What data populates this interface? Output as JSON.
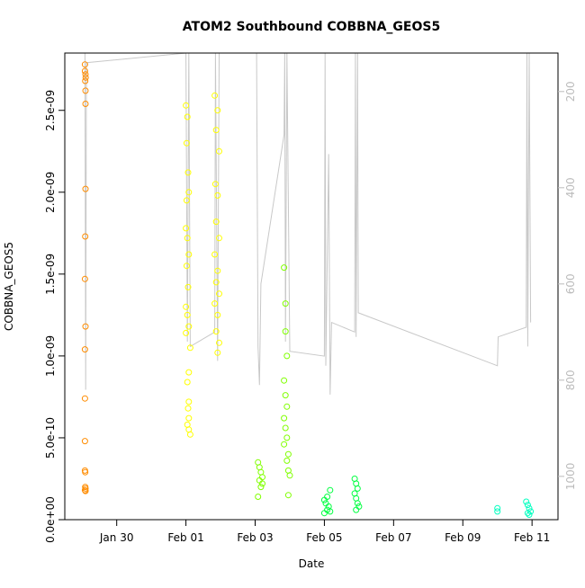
{
  "chart_data": {
    "type": "scatter",
    "title": "ATOM2 Southbound COBBNA_GEOS5",
    "xlabel": "Date",
    "ylabel": "COBBNA_GEOS5",
    "xlim": [
      "2017-01-28T12:00",
      "2017-02-11T18:00"
    ],
    "ylim": [
      0,
      2.85e-09
    ],
    "right_axis": {
      "label": "",
      "ylim": [
        1090,
        120
      ],
      "ticks": [
        200,
        400,
        600,
        800,
        1000
      ],
      "color": "#bbbbbb"
    },
    "x_ticks": [
      {
        "date": "2017-01-30",
        "label": "Jan 30"
      },
      {
        "date": "2017-02-01",
        "label": "Feb 01"
      },
      {
        "date": "2017-02-03",
        "label": "Feb 03"
      },
      {
        "date": "2017-02-05",
        "label": "Feb 05"
      },
      {
        "date": "2017-02-07",
        "label": "Feb 07"
      },
      {
        "date": "2017-02-09",
        "label": "Feb 09"
      },
      {
        "date": "2017-02-11",
        "label": "Feb 11"
      }
    ],
    "y_ticks": [
      {
        "value": 0,
        "label": "0.0e+00"
      },
      {
        "value": 5e-10,
        "label": "5.0e-10"
      },
      {
        "value": 1e-09,
        "label": "1.0e-09"
      },
      {
        "value": 1.5e-09,
        "label": "1.5e-09"
      },
      {
        "value": 2e-09,
        "label": "2.0e-09"
      },
      {
        "value": 2.5e-09,
        "label": "2.5e-09"
      }
    ],
    "grid": false,
    "legend": "none",
    "marker": "open-circle",
    "altitude_line_color": "#c8c8c8",
    "series": [
      {
        "color": "#ff8c00",
        "points": [
          [
            "2017-01-29T02:00",
            2.78e-09
          ],
          [
            "2017-01-29T02:00",
            2.74e-09
          ],
          [
            "2017-01-29T02:20",
            2.72e-09
          ],
          [
            "2017-01-29T02:30",
            2.7e-09
          ],
          [
            "2017-01-29T02:10",
            2.68e-09
          ],
          [
            "2017-01-29T02:20",
            2.62e-09
          ],
          [
            "2017-01-29T02:20",
            2.54e-09
          ],
          [
            "2017-01-29T02:20",
            2.02e-09
          ],
          [
            "2017-01-29T02:10",
            1.73e-09
          ],
          [
            "2017-01-29T02:00",
            1.47e-09
          ],
          [
            "2017-01-29T02:20",
            1.18e-09
          ],
          [
            "2017-01-29T02:00",
            1.04e-09
          ],
          [
            "2017-01-29T02:00",
            7.4e-10
          ],
          [
            "2017-01-29T02:00",
            4.8e-10
          ],
          [
            "2017-01-29T02:00",
            3e-10
          ],
          [
            "2017-01-29T02:10",
            2.9e-10
          ],
          [
            "2017-01-29T02:10",
            2e-10
          ],
          [
            "2017-01-29T02:20",
            1.9e-10
          ],
          [
            "2017-01-29T02:00",
            1.8e-10
          ],
          [
            "2017-01-29T02:20",
            1.75e-10
          ]
        ]
      },
      {
        "color": "#ffff00",
        "points": [
          [
            "2017-02-01T00:00",
            2.53e-09
          ],
          [
            "2017-02-01T01:00",
            2.46e-09
          ],
          [
            "2017-02-01T00:30",
            2.3e-09
          ],
          [
            "2017-02-01T01:30",
            2.12e-09
          ],
          [
            "2017-02-01T02:00",
            2e-09
          ],
          [
            "2017-02-01T00:30",
            1.95e-09
          ],
          [
            "2017-02-01T00:00",
            1.78e-09
          ],
          [
            "2017-02-01T01:00",
            1.72e-09
          ],
          [
            "2017-02-01T02:00",
            1.62e-09
          ],
          [
            "2017-02-01T00:30",
            1.55e-09
          ],
          [
            "2017-02-01T01:30",
            1.42e-09
          ],
          [
            "2017-02-01T00:00",
            1.3e-09
          ],
          [
            "2017-02-01T01:00",
            1.25e-09
          ],
          [
            "2017-02-01T02:00",
            1.18e-09
          ],
          [
            "2017-02-01T00:00",
            1.14e-09
          ],
          [
            "2017-02-01T03:00",
            1.05e-09
          ],
          [
            "2017-02-01T02:00",
            9e-10
          ],
          [
            "2017-02-01T01:00",
            8.4e-10
          ],
          [
            "2017-02-01T02:00",
            7.2e-10
          ],
          [
            "2017-02-01T01:30",
            6.8e-10
          ],
          [
            "2017-02-01T02:00",
            6.2e-10
          ],
          [
            "2017-02-01T01:00",
            5.8e-10
          ],
          [
            "2017-02-01T02:00",
            5.5e-10
          ],
          [
            "2017-02-01T03:00",
            5.2e-10
          ],
          [
            "2017-02-01T20:00",
            2.59e-09
          ],
          [
            "2017-02-01T22:00",
            2.5e-09
          ],
          [
            "2017-02-01T21:00",
            2.38e-09
          ],
          [
            "2017-02-01T23:00",
            2.25e-09
          ],
          [
            "2017-02-01T20:30",
            2.05e-09
          ],
          [
            "2017-02-01T22:00",
            1.98e-09
          ],
          [
            "2017-02-01T21:00",
            1.82e-09
          ],
          [
            "2017-02-01T23:00",
            1.72e-09
          ],
          [
            "2017-02-01T20:00",
            1.62e-09
          ],
          [
            "2017-02-01T22:00",
            1.52e-09
          ],
          [
            "2017-02-01T21:00",
            1.45e-09
          ],
          [
            "2017-02-01T23:00",
            1.38e-09
          ],
          [
            "2017-02-01T20:00",
            1.32e-09
          ],
          [
            "2017-02-01T22:00",
            1.25e-09
          ],
          [
            "2017-02-01T21:00",
            1.15e-09
          ],
          [
            "2017-02-01T23:00",
            1.08e-09
          ],
          [
            "2017-02-01T22:00",
            1.02e-09
          ]
        ]
      },
      {
        "color": "#80ff00",
        "points": [
          [
            "2017-02-03T02:00",
            3.5e-10
          ],
          [
            "2017-02-03T03:00",
            3.2e-10
          ],
          [
            "2017-02-03T04:00",
            2.9e-10
          ],
          [
            "2017-02-03T05:00",
            2.6e-10
          ],
          [
            "2017-02-03T03:00",
            2.4e-10
          ],
          [
            "2017-02-03T05:00",
            2.2e-10
          ],
          [
            "2017-02-03T04:00",
            2e-10
          ],
          [
            "2017-02-03T02:00",
            1.4e-10
          ],
          [
            "2017-02-03T20:00",
            1.54e-09
          ],
          [
            "2017-02-03T21:00",
            1.32e-09
          ],
          [
            "2017-02-03T21:00",
            1.15e-09
          ],
          [
            "2017-02-03T22:00",
            1e-09
          ],
          [
            "2017-02-03T20:00",
            8.5e-10
          ],
          [
            "2017-02-03T21:00",
            7.6e-10
          ],
          [
            "2017-02-03T22:00",
            6.9e-10
          ],
          [
            "2017-02-03T20:00",
            6.2e-10
          ],
          [
            "2017-02-03T21:00",
            5.6e-10
          ],
          [
            "2017-02-03T22:00",
            5e-10
          ],
          [
            "2017-02-03T20:00",
            4.6e-10
          ],
          [
            "2017-02-03T23:00",
            4e-10
          ],
          [
            "2017-02-03T22:00",
            3.6e-10
          ],
          [
            "2017-02-03T23:00",
            3e-10
          ],
          [
            "2017-02-04T00:00",
            2.7e-10
          ],
          [
            "2017-02-03T23:00",
            1.5e-10
          ]
        ]
      },
      {
        "color": "#00ff40",
        "points": [
          [
            "2017-02-05T00:00",
            1.2e-10
          ],
          [
            "2017-02-05T02:00",
            1.4e-10
          ],
          [
            "2017-02-05T04:00",
            1.8e-10
          ],
          [
            "2017-02-05T01:00",
            1e-10
          ],
          [
            "2017-02-05T03:00",
            8e-11
          ],
          [
            "2017-02-05T02:00",
            6e-11
          ],
          [
            "2017-02-05T04:00",
            5e-11
          ],
          [
            "2017-02-05T00:00",
            4e-11
          ],
          [
            "2017-02-05T21:00",
            2.5e-10
          ],
          [
            "2017-02-05T22:00",
            2.2e-10
          ],
          [
            "2017-02-05T23:00",
            1.9e-10
          ],
          [
            "2017-02-05T21:00",
            1.6e-10
          ],
          [
            "2017-02-05T22:00",
            1.3e-10
          ],
          [
            "2017-02-05T23:00",
            1e-10
          ],
          [
            "2017-02-06T00:00",
            8e-11
          ],
          [
            "2017-02-05T22:00",
            6e-11
          ]
        ]
      },
      {
        "color": "#00ffc0",
        "points": [
          [
            "2017-02-10T00:00",
            7e-11
          ],
          [
            "2017-02-10T00:00",
            5e-11
          ],
          [
            "2017-02-10T20:00",
            1.1e-10
          ],
          [
            "2017-02-10T21:00",
            9e-11
          ],
          [
            "2017-02-10T22:00",
            7e-11
          ],
          [
            "2017-02-10T23:00",
            5e-11
          ],
          [
            "2017-02-10T21:00",
            4e-11
          ],
          [
            "2017-02-10T22:00",
            3e-11
          ]
        ]
      }
    ],
    "altitude_profile": [
      [
        "2017-01-29T02:00",
        120
      ],
      [
        "2017-01-29T02:30",
        820
      ],
      [
        "2017-01-29T03:00",
        140
      ],
      [
        "2017-02-01T00:00",
        120
      ],
      [
        "2017-02-01T01:00",
        720
      ],
      [
        "2017-02-01T02:00",
        120
      ],
      [
        "2017-02-01T03:00",
        730
      ],
      [
        "2017-02-01T20:00",
        700
      ],
      [
        "2017-02-01T20:30",
        120
      ],
      [
        "2017-02-01T22:00",
        760
      ],
      [
        "2017-02-01T23:00",
        120
      ],
      [
        "2017-02-03T01:00",
        120
      ],
      [
        "2017-02-03T02:00",
        730
      ],
      [
        "2017-02-03T03:00",
        810
      ],
      [
        "2017-02-03T04:00",
        600
      ],
      [
        "2017-02-03T20:00",
        290
      ],
      [
        "2017-02-03T20:30",
        120
      ],
      [
        "2017-02-03T21:00",
        720
      ],
      [
        "2017-02-03T22:00",
        120
      ],
      [
        "2017-02-04T00:00",
        740
      ],
      [
        "2017-02-05T00:00",
        750
      ],
      [
        "2017-02-05T00:30",
        120
      ],
      [
        "2017-02-05T01:00",
        770
      ],
      [
        "2017-02-05T03:00",
        330
      ],
      [
        "2017-02-05T04:00",
        830
      ],
      [
        "2017-02-05T05:00",
        680
      ],
      [
        "2017-02-05T21:00",
        700
      ],
      [
        "2017-02-05T21:30",
        120
      ],
      [
        "2017-02-05T22:00",
        710
      ],
      [
        "2017-02-05T23:00",
        120
      ],
      [
        "2017-02-05T23:30",
        660
      ],
      [
        "2017-02-10T00:00",
        770
      ],
      [
        "2017-02-10T00:30",
        710
      ],
      [
        "2017-02-10T20:00",
        690
      ],
      [
        "2017-02-10T20:30",
        120
      ],
      [
        "2017-02-10T21:00",
        730
      ],
      [
        "2017-02-10T22:00",
        120
      ],
      [
        "2017-02-10T23:00",
        680
      ]
    ]
  }
}
